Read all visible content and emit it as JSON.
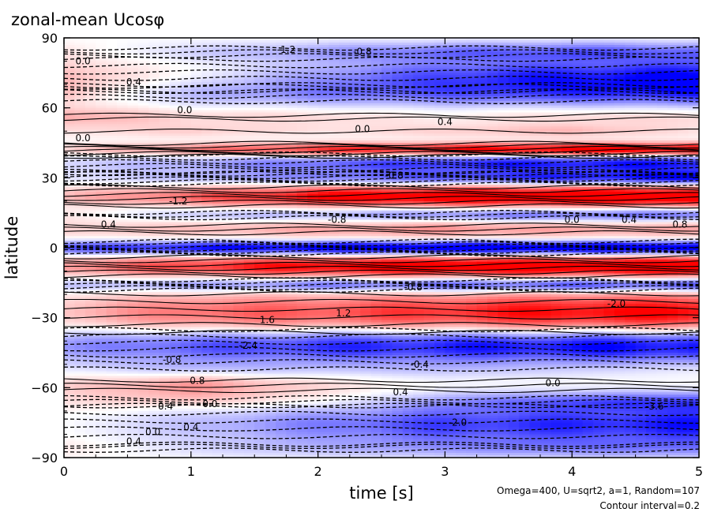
{
  "chart_data": {
    "type": "heatmap",
    "title": "zonal-mean Ucosφ",
    "xlabel": "time [s]",
    "ylabel": "latitude",
    "xlim": [
      0,
      5
    ],
    "ylim": [
      -90,
      90
    ],
    "x_ticks": [
      0,
      1,
      2,
      3,
      4,
      5
    ],
    "y_ticks": [
      90,
      60,
      30,
      0,
      -30,
      -60,
      -90
    ],
    "x_tick_labels": [
      "0",
      "1",
      "2",
      "3",
      "4",
      "5"
    ],
    "y_tick_labels": [
      "90",
      "60",
      "30",
      "0",
      "−30",
      "−60",
      "−90"
    ],
    "notes": [
      "Omega=400, U=sqrt2, a=1, Random=107",
      "Contour interval=0.2"
    ],
    "contour_interval": 0.2,
    "colors": {
      "positive": "#ff0000",
      "negative": "#0000ff",
      "zero": "#ffffff",
      "contour": "#000000"
    },
    "bands": [
      {
        "lat": 84,
        "width": 3,
        "values": [
          0.2,
          -0.4,
          -0.8,
          -1.2,
          -1.4,
          -1.2
        ]
      },
      {
        "lat": 74,
        "width": 5,
        "values": [
          0.6,
          0.0,
          -0.8,
          -1.6,
          -2.0,
          -2.2
        ]
      },
      {
        "lat": 66,
        "width": 4,
        "values": [
          0.4,
          -0.6,
          -1.0,
          -1.2,
          -1.4,
          -1.6
        ]
      },
      {
        "lat": 56,
        "width": 3,
        "values": [
          0.8,
          0.4,
          0.4,
          0.2,
          0.4,
          0.4
        ]
      },
      {
        "lat": 50,
        "width": 2,
        "values": [
          0.2,
          0.4,
          0.2,
          0.4,
          0.6,
          0.2
        ]
      },
      {
        "lat": 42,
        "width": 2,
        "values": [
          0.4,
          1.2,
          2.0,
          2.4,
          2.8,
          2.8
        ]
      },
      {
        "lat": 36,
        "width": 3,
        "values": [
          -0.4,
          -0.8,
          -1.4,
          -2.0,
          -2.2,
          -2.2
        ]
      },
      {
        "lat": 30,
        "width": 2,
        "values": [
          -0.2,
          -0.6,
          -1.0,
          -1.4,
          -1.8,
          -2.2
        ]
      },
      {
        "lat": 22,
        "width": 3,
        "values": [
          0.6,
          1.4,
          2.4,
          2.8,
          3.0,
          3.0
        ]
      },
      {
        "lat": 14,
        "width": 2,
        "values": [
          0.2,
          -0.6,
          -0.8,
          -1.2,
          -1.4,
          -1.4
        ]
      },
      {
        "lat": 8,
        "width": 3,
        "values": [
          0.4,
          0.6,
          0.8,
          1.0,
          0.8,
          0.8
        ]
      },
      {
        "lat": 0,
        "width": 2,
        "values": [
          -1.6,
          -2.2,
          -2.6,
          -2.8,
          -2.8,
          -2.8
        ]
      },
      {
        "lat": -8,
        "width": 3,
        "values": [
          1.0,
          1.8,
          2.4,
          2.8,
          2.8,
          3.0
        ]
      },
      {
        "lat": -16,
        "width": 2,
        "values": [
          -0.6,
          -1.0,
          -1.4,
          -1.6,
          -1.8,
          -1.8
        ]
      },
      {
        "lat": -28,
        "width": 6,
        "values": [
          0.6,
          1.4,
          1.6,
          2.0,
          2.4,
          2.4
        ]
      },
      {
        "lat": -42,
        "width": 5,
        "values": [
          -1.0,
          -1.6,
          -2.0,
          -2.2,
          -2.4,
          -2.4
        ]
      },
      {
        "lat": -52,
        "width": 3,
        "values": [
          -0.2,
          -0.6,
          -0.4,
          -0.4,
          -0.2,
          0.0
        ]
      },
      {
        "lat": -59,
        "width": 4,
        "values": [
          0.4,
          1.0,
          0.4,
          0.0,
          0.0,
          0.0
        ]
      },
      {
        "lat": -66,
        "width": 3,
        "values": [
          0.2,
          0.4,
          0.2,
          -0.6,
          -1.2,
          -1.4
        ]
      },
      {
        "lat": -76,
        "width": 6,
        "values": [
          0.0,
          -0.6,
          -1.2,
          -1.8,
          -2.0,
          -2.2
        ]
      },
      {
        "lat": -86,
        "width": 3,
        "values": [
          0.2,
          -0.2,
          -0.4,
          -0.6,
          -0.8,
          -0.8
        ]
      }
    ],
    "contour_labels": [
      {
        "text": "0.0",
        "t": 0.15,
        "lat": 80
      },
      {
        "text": "-1.2",
        "t": 1.75,
        "lat": 85
      },
      {
        "text": "-0.8",
        "t": 2.35,
        "lat": 84
      },
      {
        "text": "0.4",
        "t": 0.55,
        "lat": 71
      },
      {
        "text": "0.0",
        "t": 0.95,
        "lat": 59
      },
      {
        "text": "0.0",
        "t": 2.35,
        "lat": 51
      },
      {
        "text": "0.4",
        "t": 3.0,
        "lat": 54
      },
      {
        "text": "0.0",
        "t": 0.15,
        "lat": 47
      },
      {
        "text": "-0.8",
        "t": 2.6,
        "lat": 31
      },
      {
        "text": "-1.2",
        "t": 0.9,
        "lat": 20
      },
      {
        "text": "0.4",
        "t": 0.35,
        "lat": 10
      },
      {
        "text": "-0.8",
        "t": 2.15,
        "lat": 12
      },
      {
        "text": "0.0",
        "t": 4.0,
        "lat": 12
      },
      {
        "text": "0.4",
        "t": 4.45,
        "lat": 12
      },
      {
        "text": "0.8",
        "t": 4.85,
        "lat": 10
      },
      {
        "text": "-0.8",
        "t": 2.75,
        "lat": -17
      },
      {
        "text": "-2.0",
        "t": 4.35,
        "lat": -24
      },
      {
        "text": "1.2",
        "t": 2.2,
        "lat": -28
      },
      {
        "text": "1.6",
        "t": 1.6,
        "lat": -31
      },
      {
        "text": "-2.4",
        "t": 1.45,
        "lat": -42
      },
      {
        "text": "-0.8",
        "t": 0.85,
        "lat": -48
      },
      {
        "text": "-0.4",
        "t": 2.8,
        "lat": -50
      },
      {
        "text": "0.8",
        "t": 1.05,
        "lat": -57
      },
      {
        "text": "0.0",
        "t": 3.85,
        "lat": -58
      },
      {
        "text": "0.4",
        "t": 2.65,
        "lat": -62
      },
      {
        "text": "0.4",
        "t": 0.8,
        "lat": -68
      },
      {
        "text": "0.0",
        "t": 1.15,
        "lat": -67
      },
      {
        "text": "0.0",
        "t": 0.7,
        "lat": -79
      },
      {
        "text": "0.4",
        "t": 1.0,
        "lat": -77
      },
      {
        "text": "0.4",
        "t": 0.55,
        "lat": -83
      },
      {
        "text": "-2.0",
        "t": 3.1,
        "lat": -75
      },
      {
        "text": "-3.6",
        "t": 4.65,
        "lat": -68
      }
    ]
  }
}
